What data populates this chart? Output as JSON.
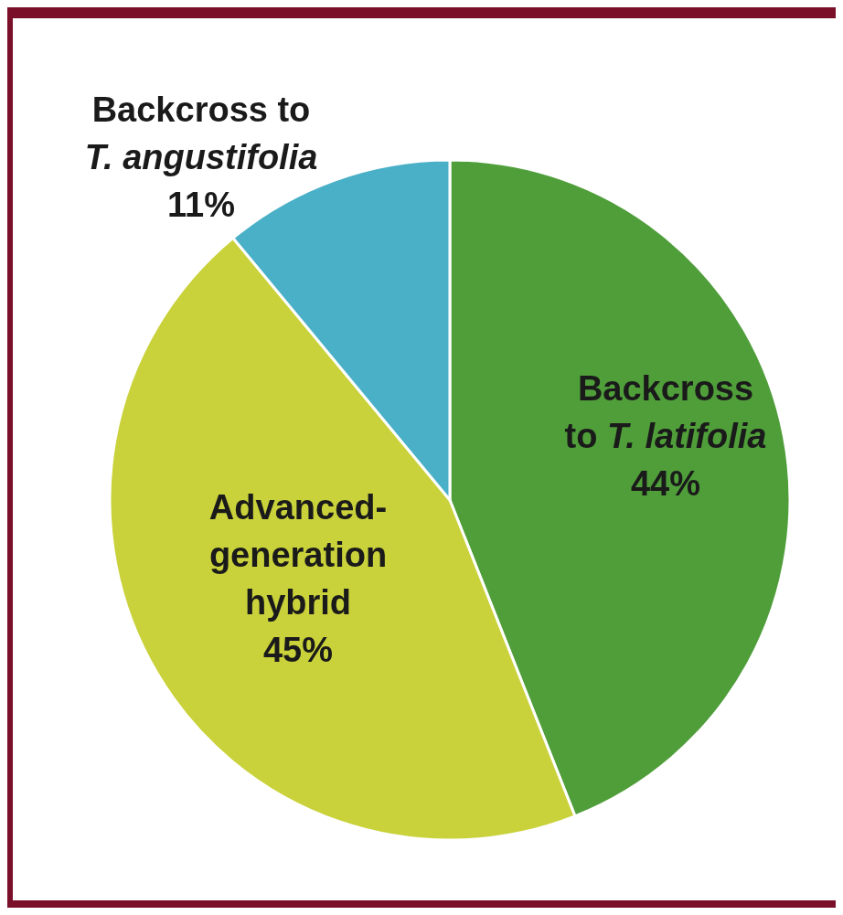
{
  "chart_data": {
    "type": "pie",
    "categories": [
      "Backcross to T. latifolia",
      "Advanced-generation hybrid",
      "Backcross to T. angustifolia"
    ],
    "values": [
      44,
      45,
      11
    ],
    "colors": [
      "#4f9e3a",
      "#c9d23a",
      "#4ab0c8"
    ],
    "value_labels": [
      "44%",
      "45%",
      "11%"
    ]
  }
}
